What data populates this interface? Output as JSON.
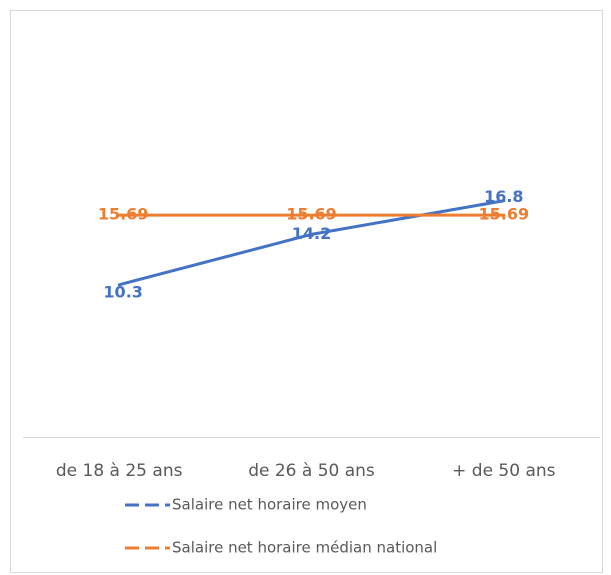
{
  "chart_data": {
    "type": "line",
    "categories": [
      "de 18 à 25 ans",
      "de 26 à 50 ans",
      "+ de 50 ans"
    ],
    "series": [
      {
        "name": "Salaire net horaire moyen",
        "color": "#4472c4",
        "values": [
          10.3,
          14.2,
          16.8
        ]
      },
      {
        "name": "Salaire net horaire médian national",
        "color": "#ed7d31",
        "values": [
          15.69,
          15.69,
          15.69
        ]
      }
    ],
    "ylim": [
      0,
      30
    ],
    "grid": false,
    "legend": "bottom"
  }
}
